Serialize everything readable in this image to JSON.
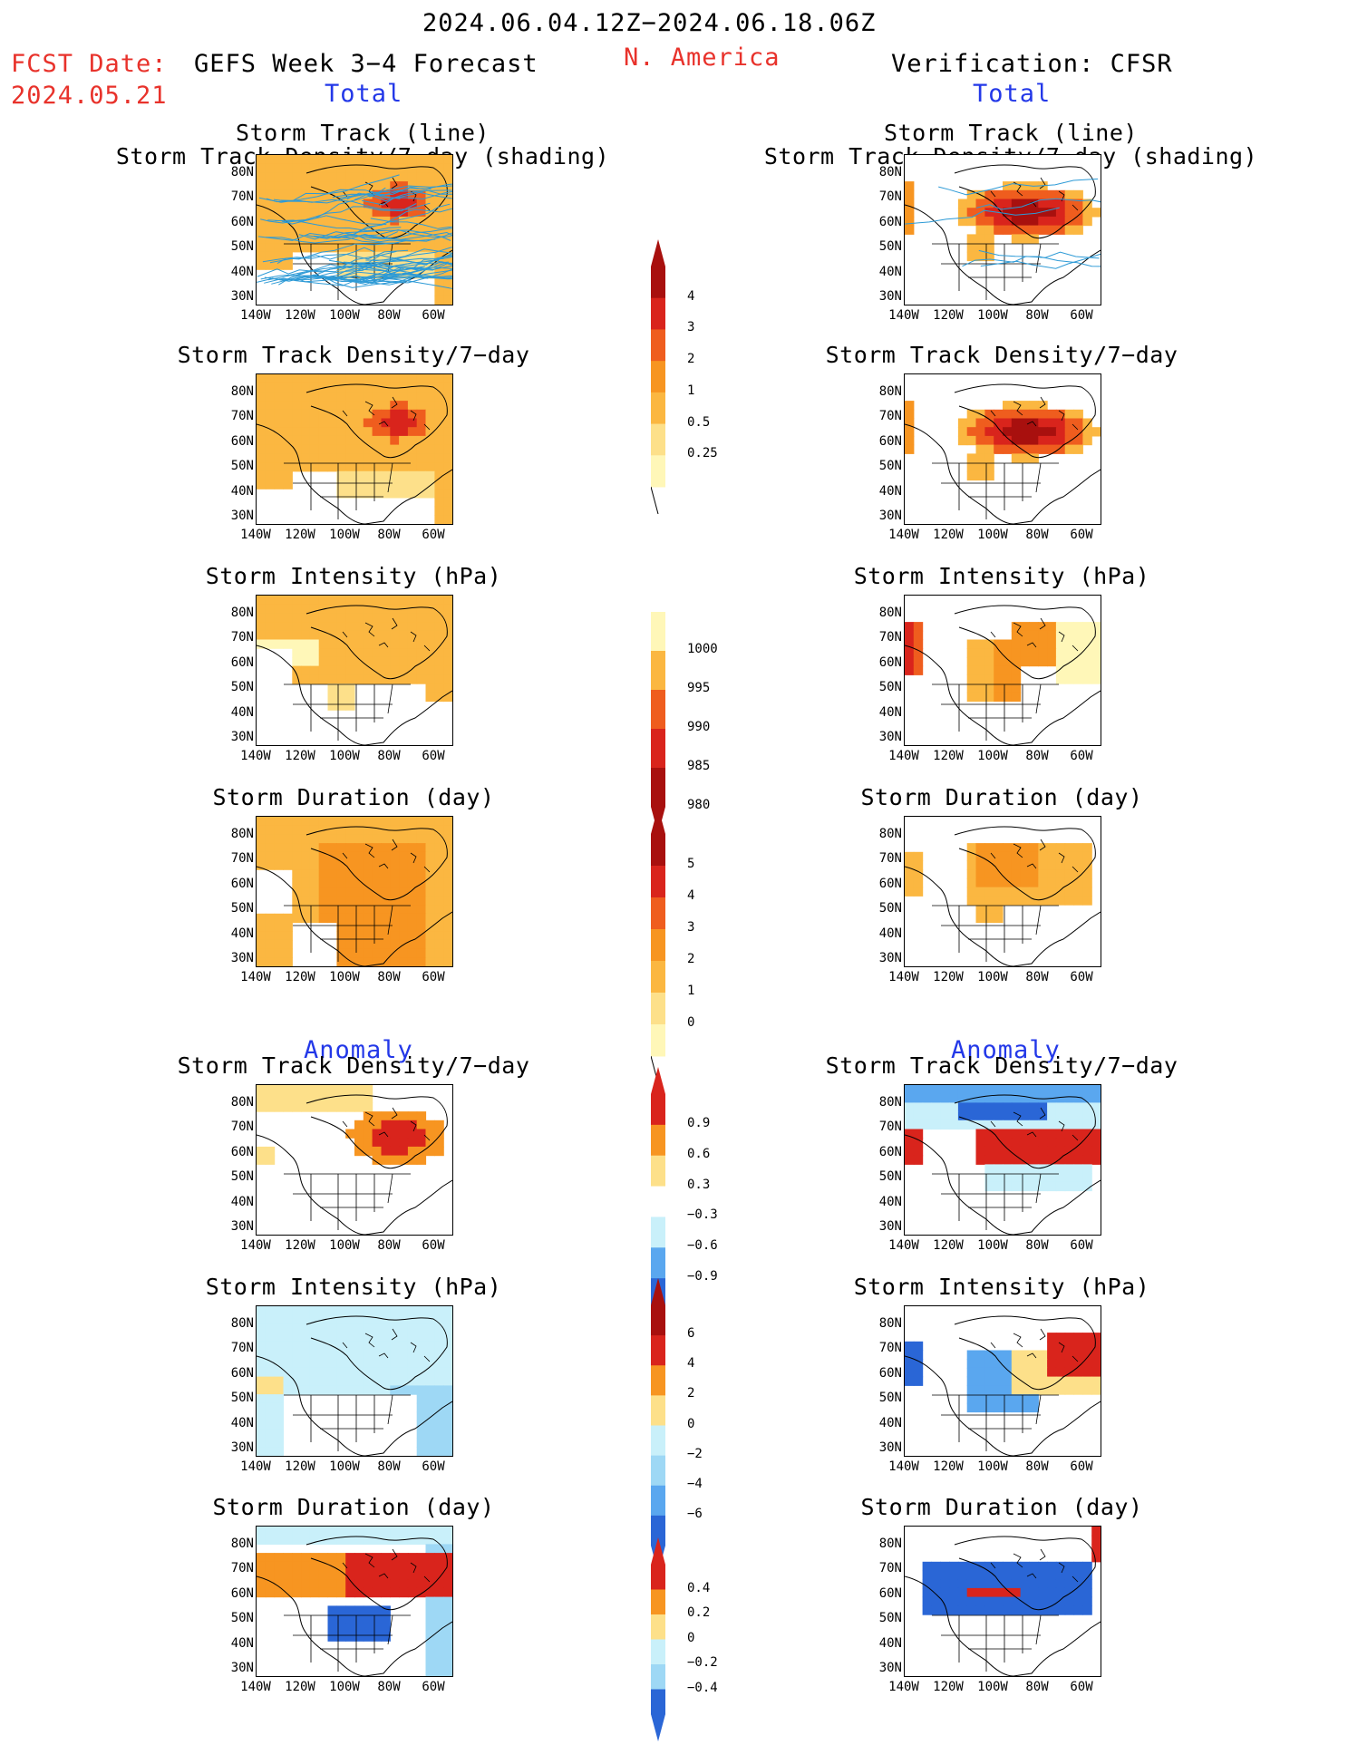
{
  "header": {
    "date_range": "2024.06.04.12Z−2024.06.18.06Z",
    "fcst_date_label": "FCST Date:",
    "fcst_date_value": "2024.05.21",
    "model_title": "GEFS Week 3−4 Forecast",
    "region": "N. America",
    "verification": "Verification: CFSR"
  },
  "sections": {
    "left_total": "Total",
    "right_total": "Total",
    "left_anomaly": "Anomaly",
    "right_anomaly": "Anomaly"
  },
  "panel_titles": {
    "track_line": "Storm Track (line)",
    "track_shading": "Storm Track Density/7−day (shading)",
    "density": "Storm Track Density/7−day",
    "intensity": "Storm Intensity (hPa)",
    "duration": "Storm Duration (day)"
  },
  "axes": {
    "lat_labels": [
      "80N",
      "70N",
      "60N",
      "50N",
      "40N",
      "30N"
    ],
    "lon_labels": [
      "140W",
      "120W",
      "100W",
      "80W",
      "60W"
    ]
  },
  "colorbars": {
    "density_total": [
      "4",
      "3",
      "2",
      "1",
      "0.5",
      "0.25"
    ],
    "intensity_total": [
      "1000",
      "995",
      "990",
      "985",
      "980"
    ],
    "duration_total": [
      "5",
      "4",
      "3",
      "2",
      "1",
      "0"
    ],
    "density_anomaly": [
      "0.9",
      "0.6",
      "0.3",
      "−0.3",
      "−0.6",
      "−0.9"
    ],
    "intensity_anomaly": [
      "6",
      "4",
      "2",
      "0",
      "−2",
      "−4",
      "−6"
    ],
    "duration_anomaly": [
      "0.4",
      "0.2",
      "0",
      "−0.2",
      "−0.4"
    ]
  },
  "colors": {
    "title_red": "#e8322b",
    "section_blue": "#2338e8",
    "pos_scale": [
      "#fff7b8",
      "#fde08a",
      "#fbb741",
      "#f79521",
      "#ef5d1e",
      "#d9241c",
      "#a8100e"
    ],
    "neg_scale": [
      "#c9f0fa",
      "#9ed8f5",
      "#5aa7ef",
      "#2a66d6",
      "#1f48c2"
    ],
    "storm_track_line": "#2d9ad6"
  }
}
